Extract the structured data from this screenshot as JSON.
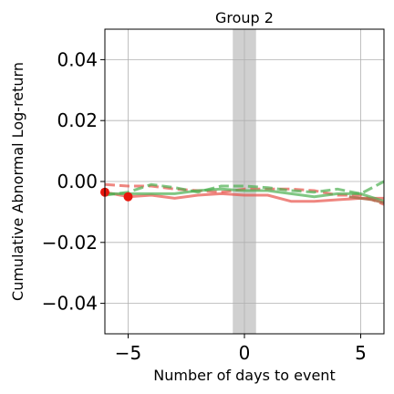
{
  "chart_data": {
    "type": "line",
    "title": "Group 2",
    "xlabel": "Number of days to event",
    "ylabel": "Cumulative Abnormal Log-return",
    "xlim": [
      -6,
      6
    ],
    "ylim": [
      -0.05,
      0.05
    ],
    "xticks": [
      -5,
      0,
      5
    ],
    "xtick_labels": [
      "−5",
      "0",
      "5"
    ],
    "yticks": [
      -0.04,
      -0.02,
      0.0,
      0.02,
      0.04
    ],
    "ytick_labels": [
      "−0.04",
      "−0.02",
      "0.00",
      "0.02",
      "0.04"
    ],
    "grid": true,
    "event_band": {
      "x0": -0.5,
      "x1": 0.5,
      "color": "#b0b0b0"
    },
    "series": [
      {
        "color": "#e8534a",
        "dashed": false,
        "alpha": 0.7,
        "x": [
          -6,
          -5,
          -4,
          -3,
          -2,
          -1,
          0,
          1,
          2,
          3,
          4,
          5,
          6
        ],
        "y": [
          -0.0035,
          -0.005,
          -0.0045,
          -0.0055,
          -0.0045,
          -0.004,
          -0.0045,
          -0.0045,
          -0.0065,
          -0.0065,
          -0.006,
          -0.0055,
          -0.0055
        ]
      },
      {
        "color": "#e8534a",
        "dashed": true,
        "alpha": 0.7,
        "x": [
          -6,
          -5,
          -4,
          -3,
          -2,
          -1,
          0,
          1,
          2,
          3,
          4,
          5,
          6
        ],
        "y": [
          -0.001,
          -0.0015,
          -0.0015,
          -0.0025,
          -0.003,
          -0.0035,
          -0.0025,
          -0.0025,
          -0.0025,
          -0.003,
          -0.0045,
          -0.0045,
          -0.0075
        ]
      },
      {
        "color": "#4caf50",
        "dashed": false,
        "alpha": 0.7,
        "x": [
          -6,
          -5,
          -4,
          -3,
          -2,
          -1,
          0,
          1,
          2,
          3,
          4,
          5,
          6
        ],
        "y": [
          -0.004,
          -0.004,
          -0.004,
          -0.004,
          -0.003,
          -0.0025,
          -0.003,
          -0.003,
          -0.004,
          -0.005,
          -0.004,
          -0.004,
          -0.0065
        ]
      },
      {
        "color": "#4caf50",
        "dashed": true,
        "alpha": 0.7,
        "x": [
          -6,
          -5,
          -4,
          -3,
          -2,
          -1,
          0,
          1,
          2,
          3,
          4,
          5,
          6
        ],
        "y": [
          -0.0045,
          -0.0035,
          -0.001,
          -0.002,
          -0.0035,
          -0.0015,
          -0.0015,
          -0.002,
          -0.003,
          -0.0035,
          -0.0025,
          -0.004,
          0.0
        ]
      },
      {
        "color": "#b07050",
        "dashed": false,
        "alpha": 0.9,
        "x": [
          4.5,
          5,
          5.5,
          6
        ],
        "y": [
          -0.005,
          -0.0055,
          -0.006,
          -0.007
        ]
      }
    ],
    "markers": [
      {
        "x": -6,
        "y": -0.0035,
        "color": "#e8170c"
      },
      {
        "x": -5,
        "y": -0.005,
        "color": "#e8170c"
      }
    ]
  }
}
